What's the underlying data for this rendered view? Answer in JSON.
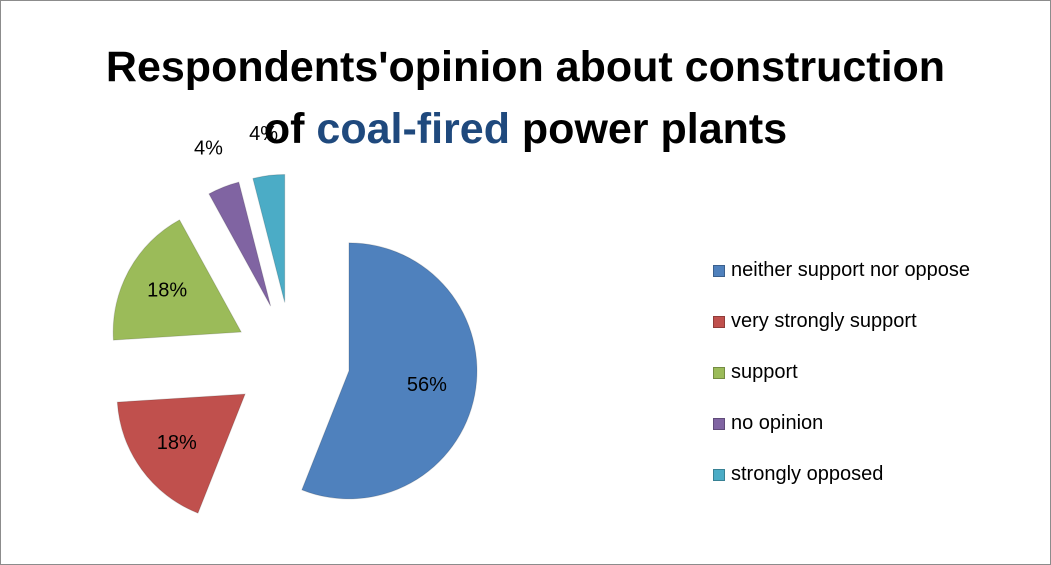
{
  "title": {
    "line1": "Respondents'opinion about construction",
    "line2_before": "of ",
    "line2_highlight": "coal-fired",
    "line2_after": " power plants",
    "highlight_color": "#1f497d"
  },
  "chart_data": {
    "type": "pie",
    "title": "Respondents'opinion about construction of coal-fired power plants",
    "legend_position": "right",
    "slices": [
      {
        "label": "neither support nor oppose",
        "value": 56,
        "display": "56%",
        "color": "#4f81bd"
      },
      {
        "label": "very strongly support",
        "value": 18,
        "display": "18%",
        "color": "#c0504d"
      },
      {
        "label": "support",
        "value": 18,
        "display": "18%",
        "color": "#9bbb59"
      },
      {
        "label": "no opinion",
        "value": 4,
        "display": "4%",
        "color": "#8064a2"
      },
      {
        "label": "strongly opposed",
        "value": 4,
        "display": "4%",
        "color": "#4bacc6"
      }
    ]
  }
}
